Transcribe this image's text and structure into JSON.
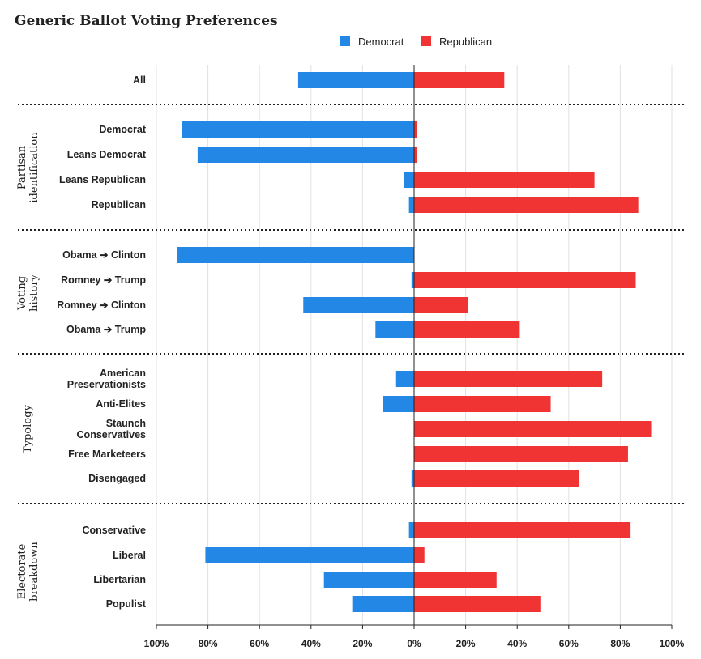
{
  "chart_data": {
    "type": "bar",
    "orientation": "horizontal-diverging",
    "title": "Generic Ballot Voting Preferences",
    "legend_position": "top-center",
    "grid": true,
    "xlim": [
      -100,
      100
    ],
    "x_ticks": [
      -100,
      -80,
      -60,
      -40,
      -20,
      0,
      20,
      40,
      60,
      80,
      100
    ],
    "x_tick_labels": [
      "100%",
      "80%",
      "60%",
      "40%",
      "20%",
      "0%",
      "20%",
      "40%",
      "60%",
      "80%",
      "100%"
    ],
    "colors": {
      "Democrat": "#2387e6",
      "Republican": "#f03434"
    },
    "series": [
      {
        "name": "Democrat",
        "direction": "left"
      },
      {
        "name": "Republican",
        "direction": "right"
      }
    ],
    "groups": [
      {
        "label": "",
        "categories": [
          {
            "label": "All",
            "democrat": 45,
            "republican": 35
          }
        ]
      },
      {
        "label": "Partisan identification",
        "categories": [
          {
            "label": "Democrat",
            "democrat": 90,
            "republican": 1
          },
          {
            "label": "Leans Democrat",
            "democrat": 84,
            "republican": 1
          },
          {
            "label": "Leans Republican",
            "democrat": 4,
            "republican": 70
          },
          {
            "label": "Republican",
            "democrat": 2,
            "republican": 87
          }
        ]
      },
      {
        "label": "Voting history",
        "categories": [
          {
            "label": "Obama ➔ Clinton",
            "democrat": 92,
            "republican": 0
          },
          {
            "label": "Romney ➔ Trump",
            "democrat": 1,
            "republican": 86
          },
          {
            "label": "Romney ➔ Clinton",
            "democrat": 43,
            "republican": 21
          },
          {
            "label": "Obama ➔ Trump",
            "democrat": 15,
            "republican": 41
          }
        ]
      },
      {
        "label": "Typology",
        "categories": [
          {
            "label": "American Preservationists",
            "democrat": 7,
            "republican": 73
          },
          {
            "label": "Anti-Elites",
            "democrat": 12,
            "republican": 53
          },
          {
            "label": "Staunch Conservatives",
            "democrat": 0,
            "republican": 92
          },
          {
            "label": "Free Marketeers",
            "democrat": 0,
            "republican": 83
          },
          {
            "label": "Disengaged",
            "democrat": 1,
            "republican": 64
          }
        ]
      },
      {
        "label": "Electorate breakdown",
        "categories": [
          {
            "label": "Conservative",
            "democrat": 2,
            "republican": 84
          },
          {
            "label": "Liberal",
            "democrat": 81,
            "republican": 4
          },
          {
            "label": "Libertarian",
            "democrat": 35,
            "republican": 32
          },
          {
            "label": "Populist",
            "democrat": 24,
            "republican": 49
          }
        ]
      }
    ]
  }
}
